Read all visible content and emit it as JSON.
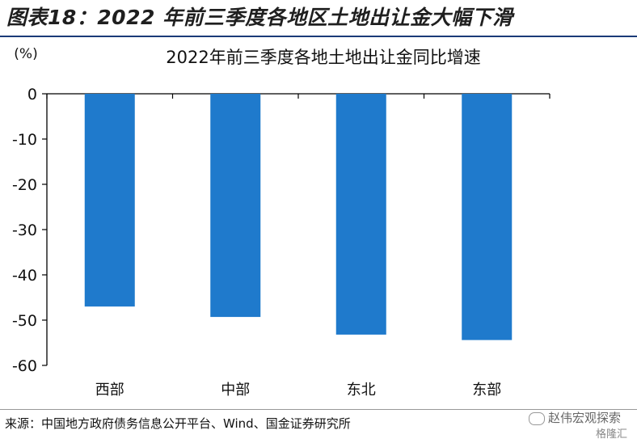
{
  "figure_title": "图表18：2022 年前三季度各地区土地出让金大幅下滑",
  "source": "来源：中国地方政府债务信息公开平台、Wind、国金证券研究所",
  "watermark": "赵伟宏观探索",
  "watermark_logo": "格隆汇",
  "colors": {
    "bar": "#1f7acc",
    "rule": "#1a3a78"
  },
  "chart_data": {
    "type": "bar",
    "title": "2022年前三季度各地土地出让金同比增速",
    "unit_label": "(%)",
    "categories": [
      "西部",
      "中部",
      "东北",
      "东部"
    ],
    "values": [
      -47.0,
      -49.3,
      -53.2,
      -54.4
    ],
    "ylim": [
      -60,
      0
    ],
    "yticks": [
      0,
      -10,
      -20,
      -30,
      -40,
      -50,
      -60
    ],
    "xlabel": "",
    "ylabel": "",
    "grid": false,
    "legend": "none"
  }
}
